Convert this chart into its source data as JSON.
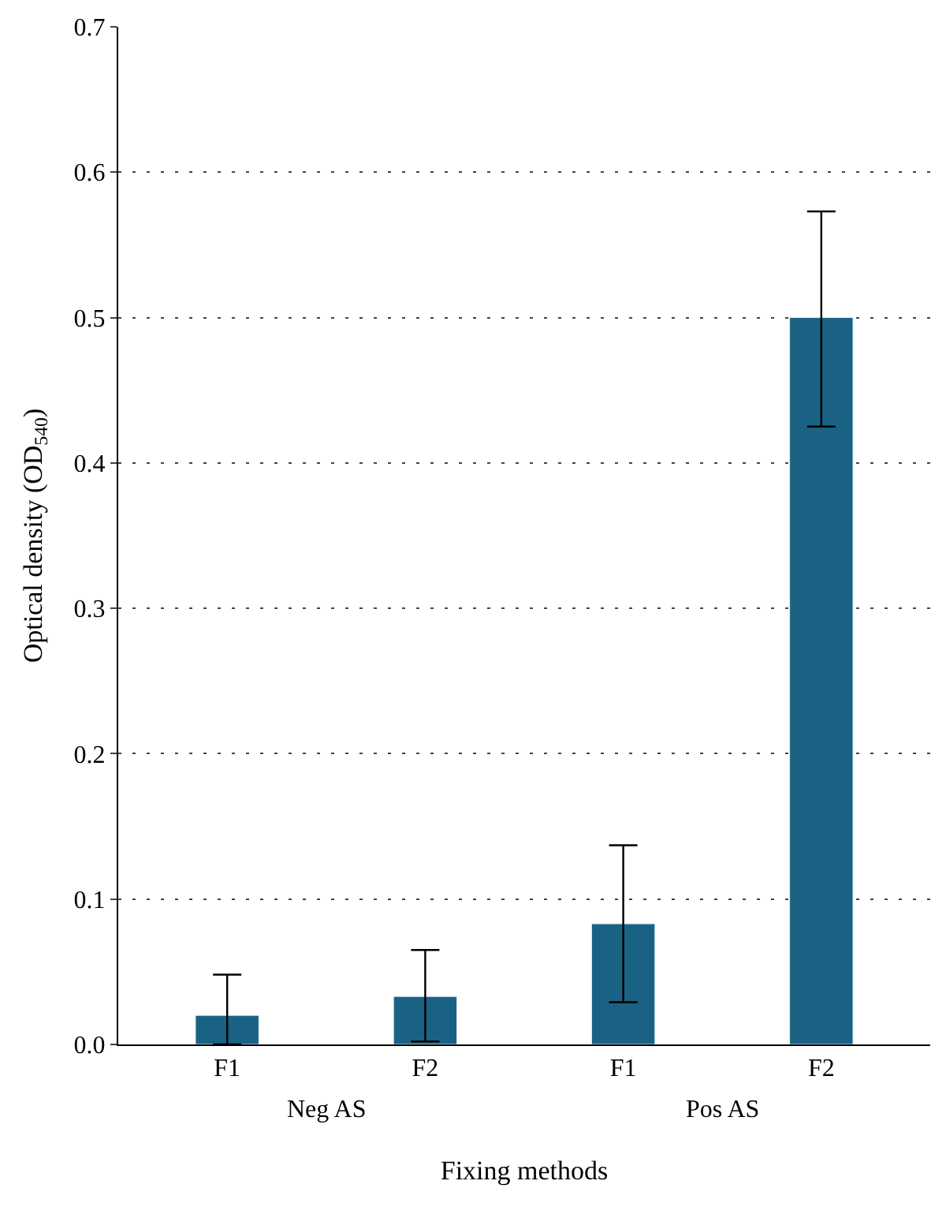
{
  "chart_data": {
    "type": "bar",
    "xlabel": "Fixing methods",
    "ylabel": "Optical density (OD$_{540}$)",
    "categories": [
      "F1",
      "F2",
      "F1",
      "F2"
    ],
    "values": [
      0.02,
      0.033,
      0.083,
      0.5
    ],
    "errors": [
      [
        0.0,
        0.048
      ],
      [
        0.002,
        0.065
      ],
      [
        0.029,
        0.137
      ],
      [
        0.425,
        0.573
      ]
    ],
    "color": "#1a6284",
    "annotations": [
      "Neg AS",
      "Pos AS"
    ],
    "ylim": [
      0,
      0.7
    ],
    "yticks": [
      {
        "value": 0,
        "label": "0.0"
      },
      0.1,
      0.2,
      0.3,
      0.4,
      0.5,
      0.6,
      0.7
    ],
    "grid": "y"
  }
}
